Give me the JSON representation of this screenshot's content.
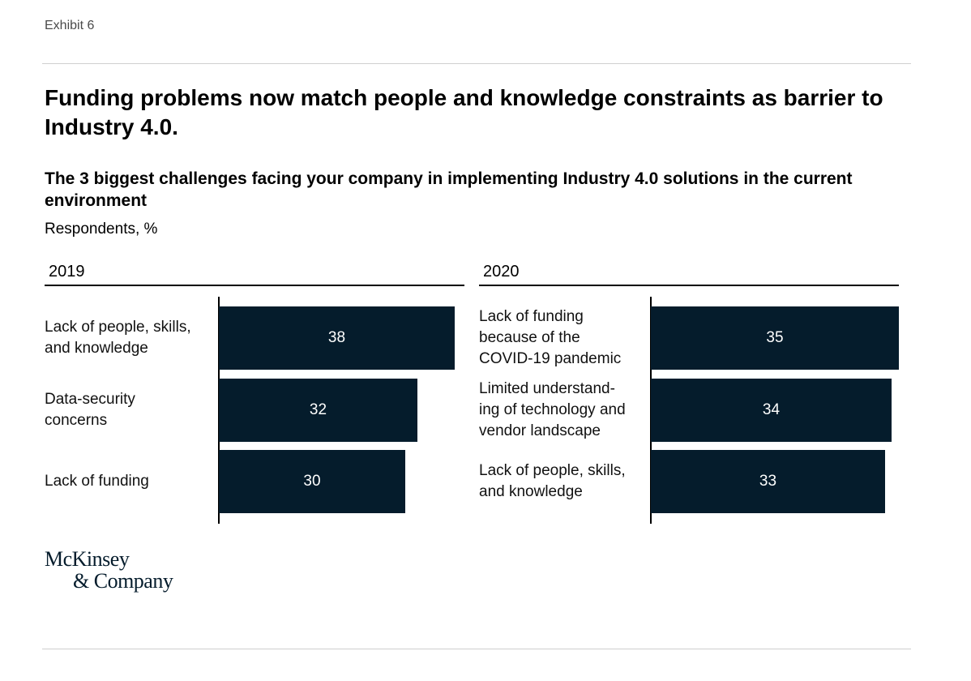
{
  "exhibit": "Exhibit 6",
  "title": "Funding problems now match people and knowledge constraints as barrier to Industry 4.0.",
  "subtitle": "The 3 biggest challenges facing your company in implementing Industry 4.0 solutions in the current environment",
  "unit": "Respondents, %",
  "chart_data": [
    {
      "type": "bar",
      "orientation": "horizontal",
      "title": "2019",
      "categories": [
        "Lack of people, skills, and knowledge",
        "Data-security concerns",
        "Lack of funding"
      ],
      "category_lines": [
        [
          "Lack of people, skills,",
          "and knowledge"
        ],
        [
          "Data-security",
          "concerns"
        ],
        [
          "Lack of funding"
        ]
      ],
      "values": [
        38,
        32,
        30
      ],
      "xlim": [
        0,
        38
      ],
      "grid": false,
      "color": "#051c2c"
    },
    {
      "type": "bar",
      "orientation": "horizontal",
      "title": "2020",
      "categories": [
        "Lack of funding because of the COVID-19 pandemic",
        "Limited understanding of technology and vendor landscape",
        "Lack of people, skills, and knowledge"
      ],
      "category_lines": [
        [
          "Lack of funding",
          "because of the",
          "COVID-19 pandemic"
        ],
        [
          "Limited understand-",
          "ing of technology and",
          "vendor landscape"
        ],
        [
          "Lack of people, skills,",
          "and knowledge"
        ]
      ],
      "values": [
        35,
        34,
        33
      ],
      "xlim": [
        0,
        35
      ],
      "grid": false,
      "color": "#051c2c"
    }
  ],
  "logo": {
    "line1": "McKinsey",
    "line2": "& Company"
  }
}
